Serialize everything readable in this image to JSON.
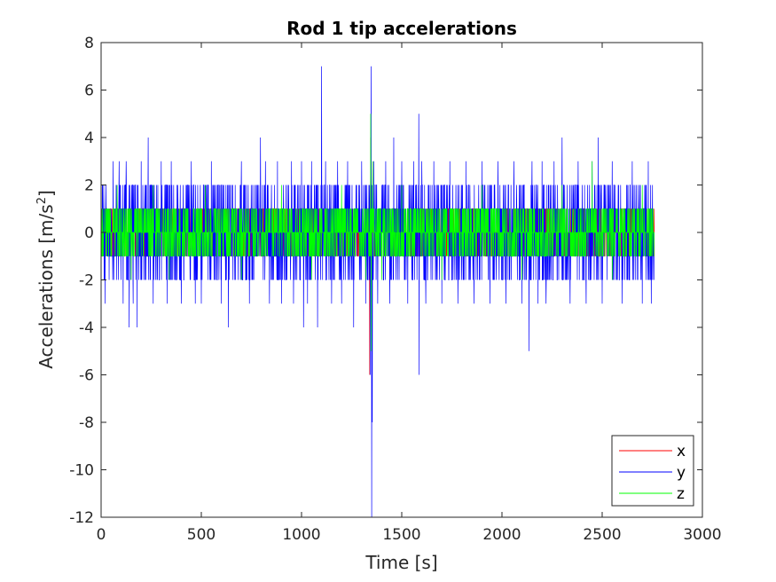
{
  "chart_data": {
    "type": "line",
    "title": "Rod 1 tip accelerations",
    "xlabel": "Time [s]",
    "ylabel_main": "Accelerations [m/s",
    "ylabel_sup": "2",
    "ylabel_end": "]",
    "xlim": [
      0,
      3000
    ],
    "ylim": [
      -12,
      8
    ],
    "xticks": [
      0,
      500,
      1000,
      1500,
      2000,
      2500,
      3000
    ],
    "yticks": [
      -12,
      -10,
      -8,
      -6,
      -4,
      -2,
      0,
      2,
      4,
      6,
      8
    ],
    "legend_position": "bottom-right",
    "duration": 2760,
    "series": [
      {
        "name": "x",
        "color": "#ff0000",
        "base_range": [
          -1,
          1
        ],
        "spikes": [
          [
            1340,
            -6
          ],
          [
            1345,
            4
          ],
          [
            1350,
            -2
          ]
        ]
      },
      {
        "name": "y",
        "color": "#0000ff",
        "base_range": [
          -2,
          2
        ],
        "spikes": [
          [
            20,
            -3
          ],
          [
            40,
            -2
          ],
          [
            60,
            3
          ],
          [
            90,
            3
          ],
          [
            110,
            -3
          ],
          [
            125,
            3
          ],
          [
            130,
            -2
          ],
          [
            140,
            -4
          ],
          [
            160,
            -3
          ],
          [
            180,
            -4
          ],
          [
            200,
            3
          ],
          [
            235,
            4
          ],
          [
            260,
            -3
          ],
          [
            300,
            3
          ],
          [
            330,
            -3
          ],
          [
            350,
            3
          ],
          [
            400,
            -3
          ],
          [
            450,
            3
          ],
          [
            470,
            -3
          ],
          [
            500,
            -3
          ],
          [
            550,
            3
          ],
          [
            600,
            -3
          ],
          [
            635,
            -4
          ],
          [
            700,
            3
          ],
          [
            740,
            -3
          ],
          [
            795,
            4
          ],
          [
            820,
            3
          ],
          [
            840,
            -3
          ],
          [
            880,
            3
          ],
          [
            900,
            -3
          ],
          [
            950,
            3
          ],
          [
            960,
            -3
          ],
          [
            1000,
            3
          ],
          [
            1010,
            -4
          ],
          [
            1030,
            -3
          ],
          [
            1050,
            3
          ],
          [
            1080,
            -4
          ],
          [
            1100,
            7
          ],
          [
            1120,
            3
          ],
          [
            1150,
            -3
          ],
          [
            1180,
            3
          ],
          [
            1200,
            -3
          ],
          [
            1230,
            3
          ],
          [
            1260,
            -4
          ],
          [
            1300,
            3
          ],
          [
            1320,
            -3
          ],
          [
            1343,
            -6
          ],
          [
            1347,
            7
          ],
          [
            1350,
            -12
          ],
          [
            1353,
            -8
          ],
          [
            1360,
            3
          ],
          [
            1380,
            -3
          ],
          [
            1420,
            3
          ],
          [
            1440,
            -3
          ],
          [
            1460,
            4
          ],
          [
            1500,
            3
          ],
          [
            1530,
            -3
          ],
          [
            1560,
            3
          ],
          [
            1585,
            5
          ],
          [
            1587,
            -6
          ],
          [
            1600,
            3
          ],
          [
            1620,
            -3
          ],
          [
            1660,
            3
          ],
          [
            1700,
            -3
          ],
          [
            1740,
            3
          ],
          [
            1780,
            -3
          ],
          [
            1820,
            3
          ],
          [
            1860,
            -3
          ],
          [
            1900,
            3
          ],
          [
            1940,
            -3
          ],
          [
            1980,
            3
          ],
          [
            2020,
            -3
          ],
          [
            2060,
            3
          ],
          [
            2100,
            -3
          ],
          [
            2135,
            -5
          ],
          [
            2150,
            3
          ],
          [
            2180,
            -3
          ],
          [
            2200,
            3
          ],
          [
            2220,
            -3
          ],
          [
            2260,
            3
          ],
          [
            2300,
            4
          ],
          [
            2340,
            -3
          ],
          [
            2380,
            3
          ],
          [
            2420,
            -3
          ],
          [
            2450,
            3
          ],
          [
            2480,
            4
          ],
          [
            2500,
            -3
          ],
          [
            2550,
            3
          ],
          [
            2600,
            -3
          ],
          [
            2650,
            3
          ],
          [
            2700,
            -3
          ],
          [
            2730,
            3
          ],
          [
            2745,
            -3
          ]
        ]
      },
      {
        "name": "z",
        "color": "#00ff00",
        "base_range": [
          -1,
          1
        ],
        "spikes": [
          [
            80,
            2
          ],
          [
            150,
            -2
          ],
          [
            260,
            2
          ],
          [
            340,
            -2
          ],
          [
            520,
            2
          ],
          [
            700,
            -2
          ],
          [
            900,
            2
          ],
          [
            1050,
            -2
          ],
          [
            1200,
            2
          ],
          [
            1320,
            -2
          ],
          [
            1345,
            5
          ],
          [
            1348,
            -5
          ],
          [
            1355,
            3
          ],
          [
            1400,
            -2
          ],
          [
            1500,
            2
          ],
          [
            1700,
            -2
          ],
          [
            1900,
            2
          ],
          [
            2100,
            -2
          ],
          [
            2300,
            2
          ],
          [
            2450,
            3
          ],
          [
            2550,
            -2
          ],
          [
            2700,
            2
          ]
        ]
      }
    ]
  }
}
